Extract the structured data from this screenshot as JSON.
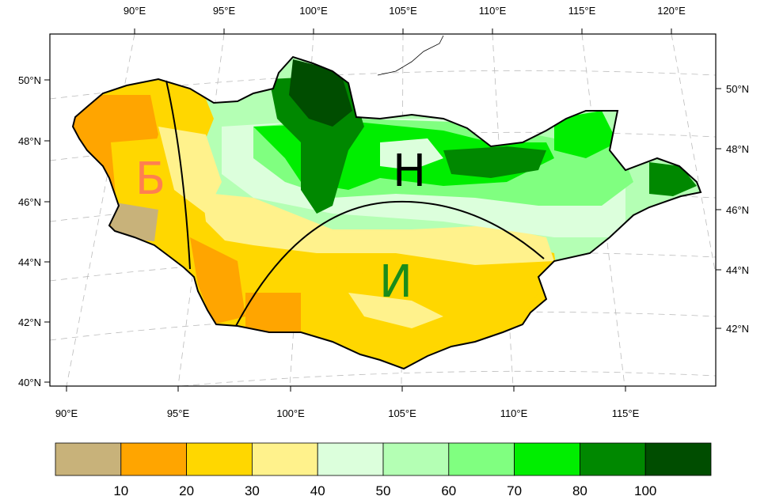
{
  "map": {
    "lon_top": [
      "90°E",
      "95°E",
      "100°E",
      "105°E",
      "110°E",
      "115°E",
      "120°E"
    ],
    "lon_bottom": [
      "90°E",
      "95°E",
      "100°E",
      "105°E",
      "110°E",
      "115°E"
    ],
    "lat_left": [
      "50°N",
      "48°N",
      "46°N",
      "44°N",
      "42°N",
      "40°N"
    ],
    "lat_right": [
      "50°N",
      "48°N",
      "46°N",
      "44°N",
      "42°N"
    ],
    "region_labels": [
      {
        "text": "Б",
        "color": "#ff7f50"
      },
      {
        "text": "Н",
        "color": "#000000"
      },
      {
        "text": "И",
        "color": "#1a8c1a"
      }
    ]
  },
  "colorbar": {
    "colors": [
      "#c8b27a",
      "#ffa500",
      "#ffd700",
      "#fff28c",
      "#dcffdc",
      "#b4ffb4",
      "#80ff80",
      "#00ee00",
      "#008800",
      "#004d00"
    ],
    "labels": [
      "10",
      "20",
      "30",
      "40",
      "50",
      "60",
      "70",
      "80",
      "100"
    ]
  }
}
